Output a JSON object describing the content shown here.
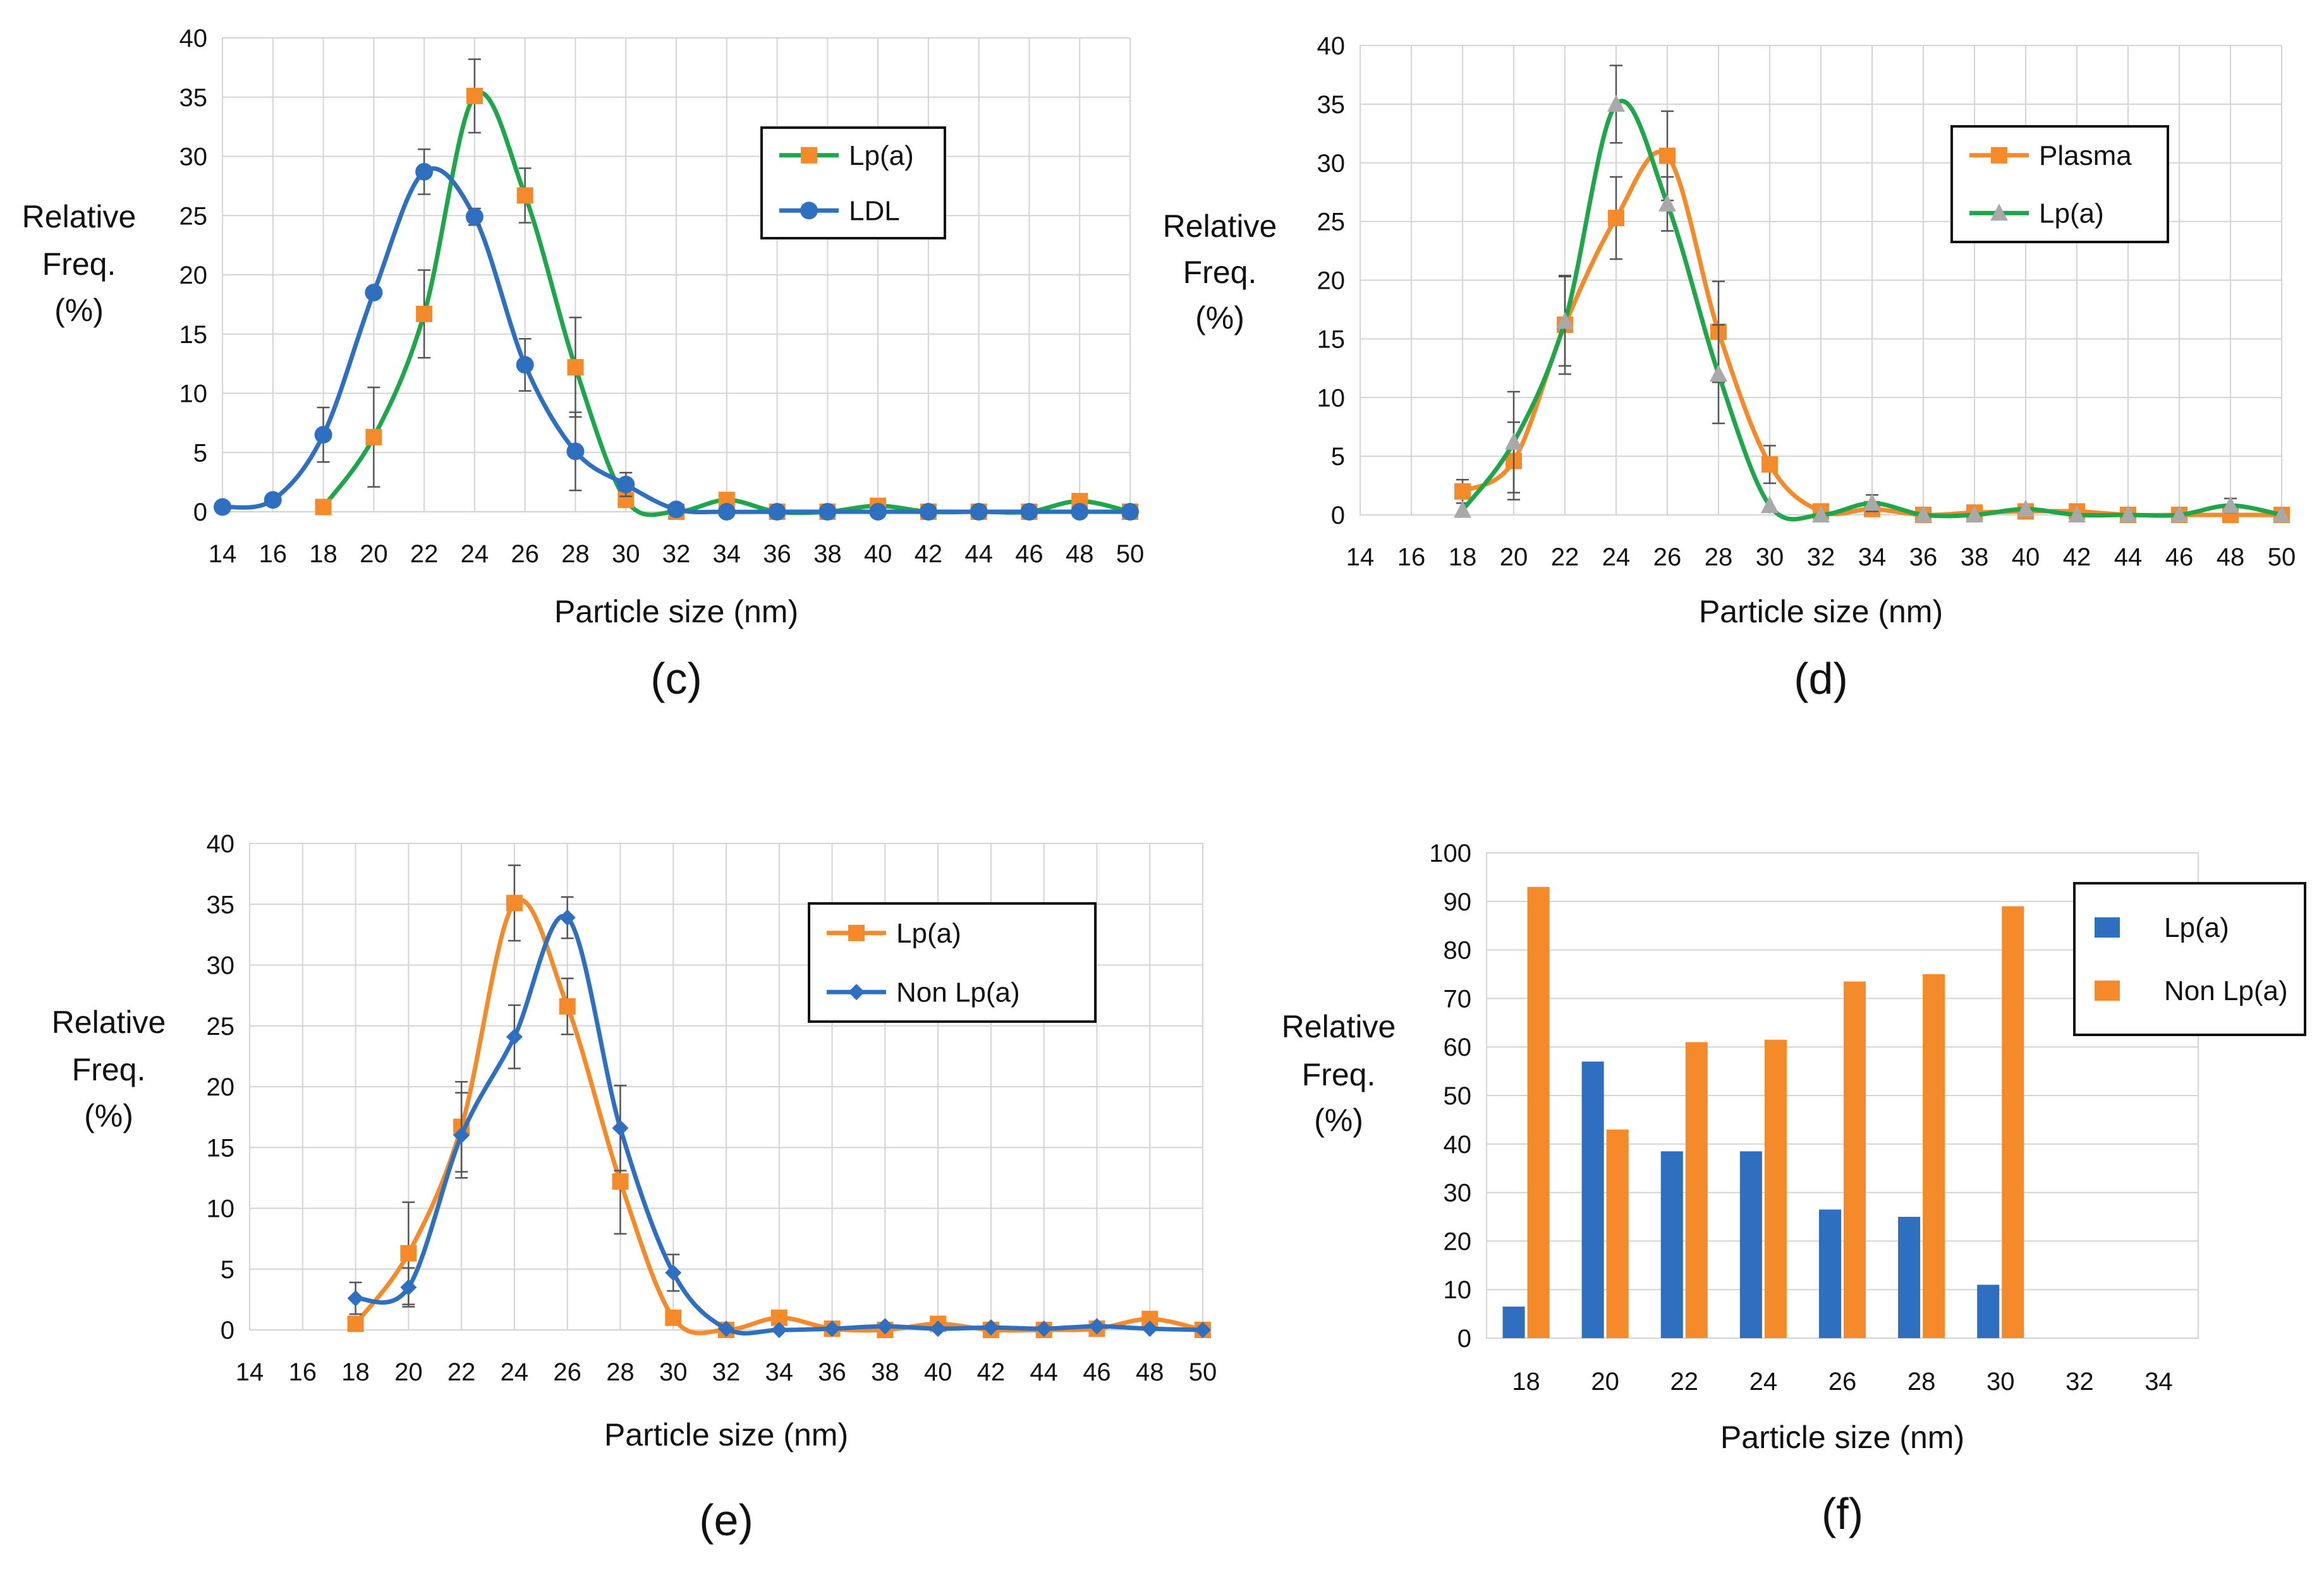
{
  "chart_data": [
    {
      "id": "c",
      "type": "line",
      "panel_label": "(c)",
      "xlabel": "Particle size (nm)",
      "ylabel": [
        "Relative",
        "Freq.",
        "(%)"
      ],
      "ylim": [
        0,
        40
      ],
      "yticks": [
        0,
        5,
        10,
        15,
        20,
        25,
        30,
        35,
        40
      ],
      "xticks": [
        14,
        16,
        18,
        20,
        22,
        24,
        26,
        28,
        30,
        32,
        34,
        36,
        38,
        40,
        42,
        44,
        46,
        48,
        50
      ],
      "legend_position": "top-right",
      "series": [
        {
          "name": "Lp(a)",
          "line_color": "#1fa64a",
          "marker_color": "#f58a2a",
          "marker": "square",
          "x": [
            18,
            20,
            22,
            24,
            26,
            28,
            30,
            32,
            34,
            36,
            38,
            40,
            42,
            44,
            46,
            48,
            50
          ],
          "y": [
            0.4,
            6.3,
            16.7,
            35.1,
            26.7,
            12.2,
            1.0,
            0,
            1.0,
            0,
            0,
            0.5,
            0,
            0,
            0,
            0.9,
            0
          ],
          "err": [
            null,
            4.2,
            3.7,
            3.1,
            2.3,
            4.2,
            null,
            null,
            null,
            null,
            null,
            null,
            null,
            null,
            null,
            0.4,
            null
          ]
        },
        {
          "name": "LDL",
          "line_color": "#2f6fbf",
          "marker_color": "#2f6fbf",
          "marker": "circle",
          "x": [
            14,
            16,
            18,
            20,
            22,
            24,
            26,
            28,
            30,
            32,
            34,
            36,
            38,
            40,
            42,
            44,
            46,
            48,
            50
          ],
          "y": [
            0.4,
            1.0,
            6.5,
            18.5,
            28.7,
            24.9,
            12.4,
            5.1,
            2.3,
            0.2,
            0,
            0,
            0,
            0,
            0,
            0,
            0,
            0,
            0
          ],
          "err": [
            null,
            null,
            2.3,
            null,
            1.9,
            0.7,
            2.2,
            3.3,
            1.0,
            null,
            null,
            null,
            null,
            null,
            null,
            null,
            null,
            null,
            null
          ]
        }
      ]
    },
    {
      "id": "d",
      "type": "line",
      "panel_label": "(d)",
      "xlabel": "Particle size (nm)",
      "ylabel": [
        "Relative",
        "Freq.",
        "(%)"
      ],
      "ylim": [
        0,
        40
      ],
      "yticks": [
        0,
        5,
        10,
        15,
        20,
        25,
        30,
        35,
        40
      ],
      "xticks": [
        14,
        16,
        18,
        20,
        22,
        24,
        26,
        28,
        30,
        32,
        34,
        36,
        38,
        40,
        42,
        44,
        46,
        48,
        50
      ],
      "legend_position": "top-right",
      "series": [
        {
          "name": "Plasma",
          "line_color": "#f58a2a",
          "marker_color": "#f58a2a",
          "marker": "square",
          "x": [
            18,
            20,
            22,
            24,
            26,
            28,
            30,
            32,
            34,
            36,
            38,
            40,
            42,
            44,
            46,
            48,
            50
          ],
          "y": [
            2.0,
            4.6,
            16.2,
            25.3,
            30.6,
            15.6,
            4.3,
            0.3,
            0.5,
            0,
            0.2,
            0.3,
            0.3,
            0,
            0,
            0,
            0
          ],
          "err": [
            1.0,
            3.3,
            4.2,
            3.5,
            3.8,
            4.3,
            1.6,
            null,
            null,
            null,
            null,
            null,
            null,
            null,
            null,
            null,
            null
          ]
        },
        {
          "name": "Lp(a)",
          "line_color": "#1fa64a",
          "marker_color": "#a9a9a9",
          "marker": "triangle",
          "x": [
            18,
            20,
            22,
            24,
            26,
            28,
            30,
            32,
            34,
            36,
            38,
            40,
            42,
            44,
            46,
            48,
            50
          ],
          "y": [
            0.4,
            6.2,
            16.5,
            35.0,
            26.5,
            12.0,
            0.8,
            0,
            1.0,
            0,
            0,
            0.5,
            0,
            0,
            0,
            0.8,
            0
          ],
          "err": [
            null,
            4.3,
            3.8,
            3.3,
            2.3,
            4.2,
            null,
            null,
            0.7,
            null,
            null,
            null,
            null,
            null,
            null,
            0.6,
            null
          ]
        }
      ]
    },
    {
      "id": "e",
      "type": "line",
      "panel_label": "(e)",
      "xlabel": "Particle size (nm)",
      "ylabel": [
        "Relative",
        "Freq.",
        "(%)"
      ],
      "ylim": [
        0,
        40
      ],
      "yticks": [
        0,
        5,
        10,
        15,
        20,
        25,
        30,
        35,
        40
      ],
      "xticks": [
        14,
        16,
        18,
        20,
        22,
        24,
        26,
        28,
        30,
        32,
        34,
        36,
        38,
        40,
        42,
        44,
        46,
        48,
        50
      ],
      "legend_position": "top-right",
      "series": [
        {
          "name": "Lp(a)",
          "line_color": "#f58a2a",
          "marker_color": "#f58a2a",
          "marker": "square",
          "x": [
            18,
            20,
            22,
            24,
            26,
            28,
            30,
            32,
            34,
            36,
            38,
            40,
            42,
            44,
            46,
            48,
            50
          ],
          "y": [
            0.5,
            6.3,
            16.7,
            35.1,
            26.6,
            12.2,
            1.0,
            0,
            1.0,
            0.1,
            0,
            0.5,
            0,
            0,
            0.1,
            0.9,
            0
          ],
          "err": [
            null,
            4.2,
            3.7,
            3.1,
            2.3,
            4.3,
            null,
            null,
            null,
            null,
            null,
            null,
            null,
            null,
            null,
            0.5,
            null
          ]
        },
        {
          "name": "Non Lp(a)",
          "line_color": "#2f6fbf",
          "marker_color": "#2f6fbf",
          "marker": "diamond",
          "x": [
            18,
            20,
            22,
            24,
            26,
            28,
            30,
            32,
            34,
            36,
            38,
            40,
            42,
            44,
            46,
            48,
            50
          ],
          "y": [
            2.6,
            3.5,
            16.0,
            24.1,
            33.9,
            16.6,
            4.7,
            0.1,
            0,
            0.1,
            0.3,
            0.1,
            0.2,
            0.1,
            0.3,
            0.1,
            0
          ],
          "err": [
            1.3,
            1.6,
            3.5,
            2.6,
            1.7,
            3.5,
            1.5,
            null,
            null,
            null,
            null,
            null,
            null,
            null,
            null,
            null,
            null
          ]
        }
      ]
    },
    {
      "id": "f",
      "type": "bar",
      "panel_label": "(f)",
      "xlabel": "Particle size (nm)",
      "ylabel": [
        "Relative",
        "Freq.",
        "(%)"
      ],
      "ylim": [
        0,
        100
      ],
      "yticks": [
        0,
        10,
        20,
        30,
        40,
        50,
        60,
        70,
        80,
        90,
        100
      ],
      "categories": [
        "18",
        "20",
        "22",
        "24",
        "26",
        "28",
        "30",
        "32",
        "34"
      ],
      "legend_position": "top-right",
      "series": [
        {
          "name": "Lp(a)",
          "color": "#2f6fbf",
          "values": [
            6.5,
            57,
            38.5,
            38.5,
            26.5,
            25,
            11,
            null,
            null
          ]
        },
        {
          "name": "Non Lp(a)",
          "color": "#f58a2a",
          "values": [
            93,
            43,
            61,
            61.5,
            73.5,
            75,
            89,
            null,
            null
          ]
        }
      ]
    }
  ]
}
